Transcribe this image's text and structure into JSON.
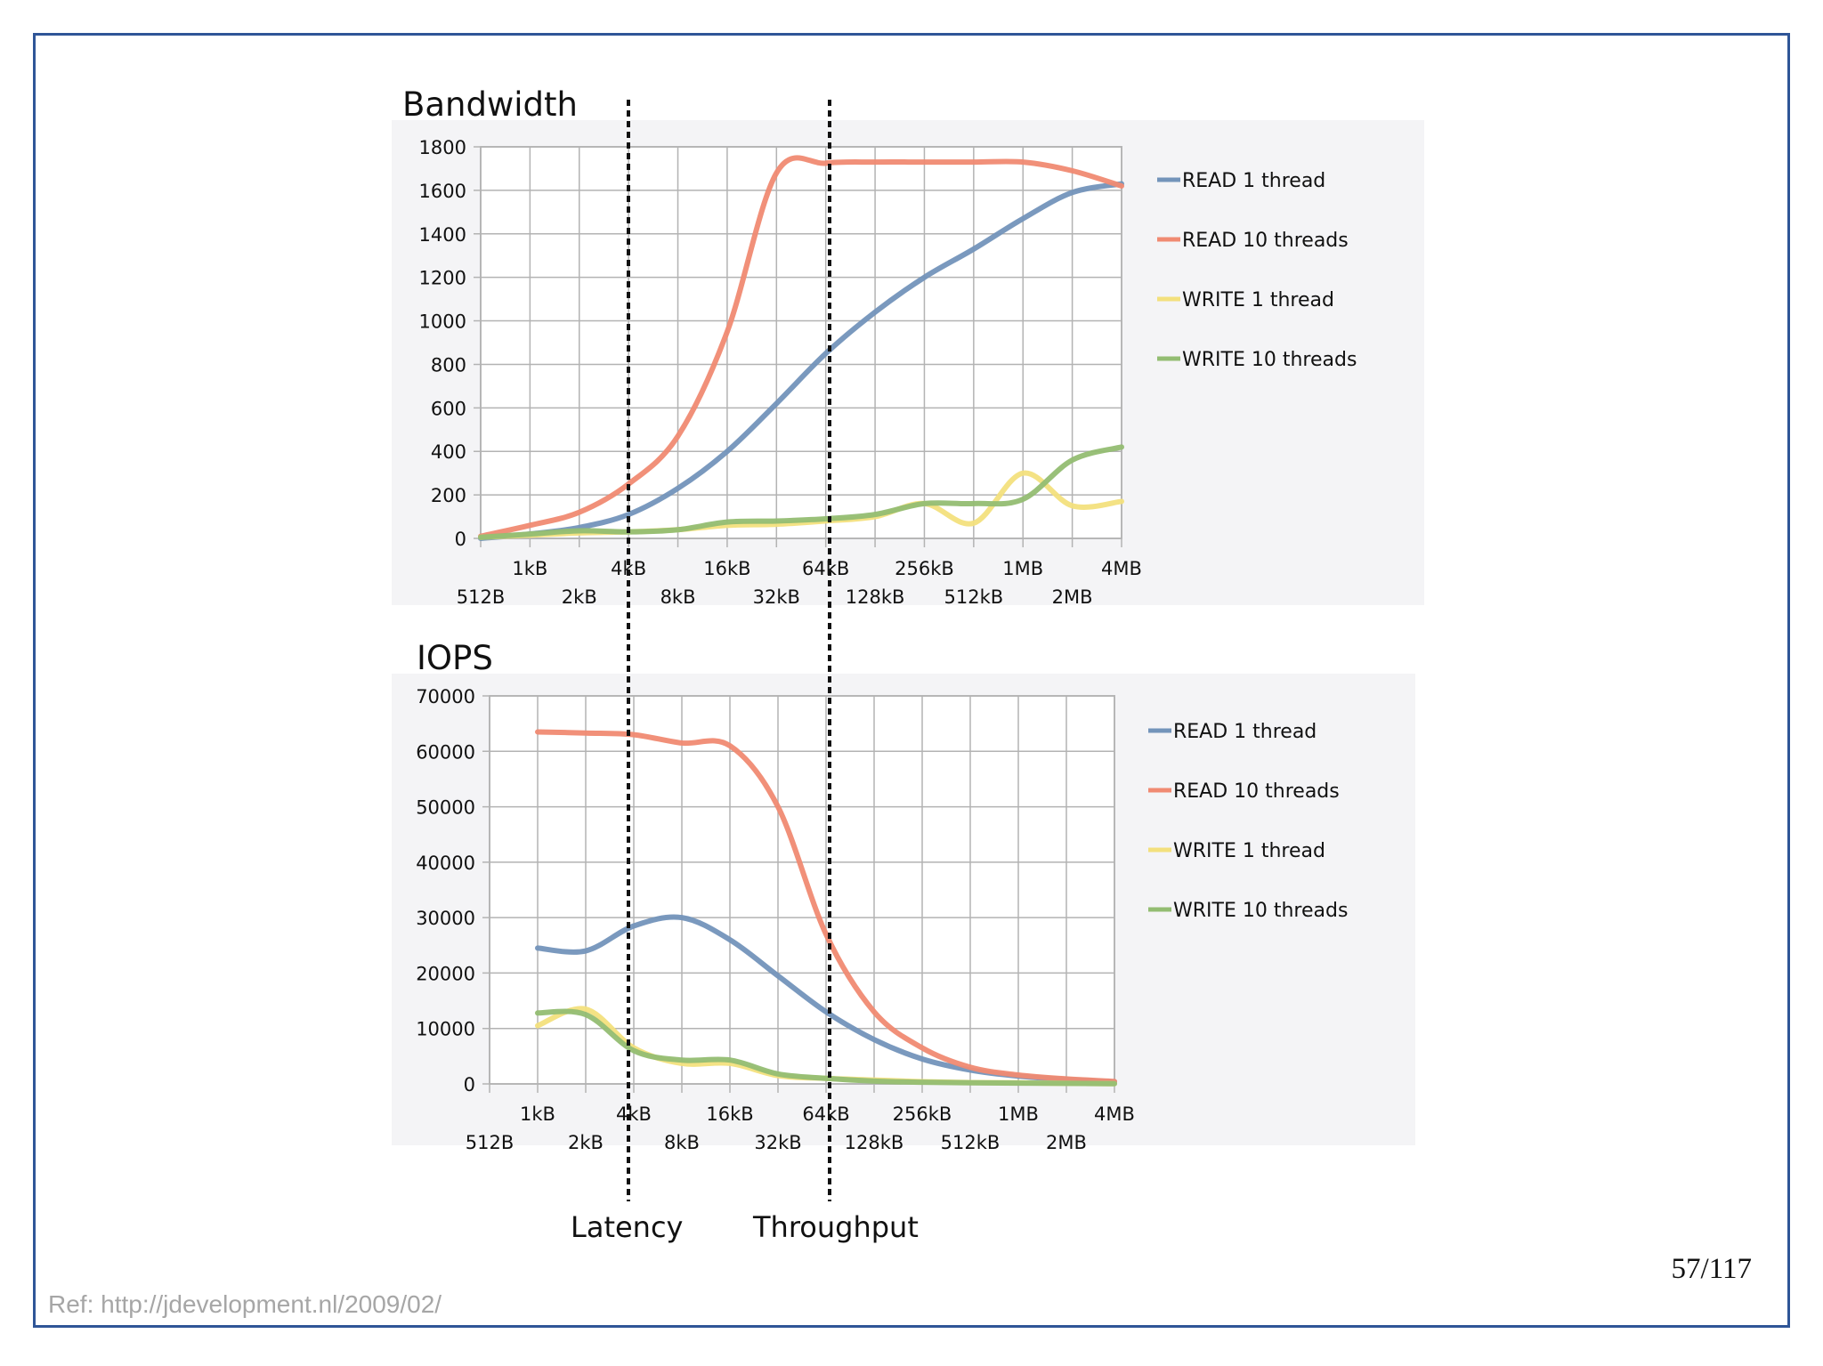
{
  "colors": {
    "frame": "#2f5597",
    "read_1": "#7394ba",
    "read_10": "#f08a72",
    "write_1": "#f3e07d",
    "write_10": "#93bd72",
    "grid": "#b3b3b3",
    "panel": "#f4f4f6",
    "ref_text": "#a6a6a6"
  },
  "markers": {
    "latency_label": "Latency",
    "throughput_label": "Throughput",
    "latency_at": "4kB",
    "throughput_at": "64kB"
  },
  "footer": {
    "page_number": "57/117",
    "ref": "Ref: http://jdevelopment.nl/2009/02/"
  },
  "chart_data": [
    {
      "type": "line",
      "title": "Bandwidth",
      "x_scale": "log2",
      "x_ticks_row1": [
        "1kB",
        "4kB",
        "16kB",
        "64kB",
        "256kB",
        "1MB",
        "4MB"
      ],
      "x_ticks_row2": [
        "512B",
        "2kB",
        "8kB",
        "32kB",
        "128kB",
        "512kB",
        "2MB"
      ],
      "x": [
        "512B",
        "1kB",
        "2kB",
        "4kB",
        "8kB",
        "16kB",
        "32kB",
        "64kB",
        "128kB",
        "256kB",
        "512kB",
        "1MB",
        "2MB",
        "4MB"
      ],
      "ylim": [
        0,
        1800
      ],
      "y_ticks": [
        "0",
        "200",
        "400",
        "600",
        "800",
        "1000",
        "1200",
        "1400",
        "1600",
        "1800"
      ],
      "grid": true,
      "legend_position": "right",
      "series": [
        {
          "name": "READ 1 thread",
          "color_key": "read_1",
          "values": [
            0,
            20,
            50,
            110,
            230,
            400,
            620,
            850,
            1040,
            1200,
            1330,
            1470,
            1590,
            1630
          ]
        },
        {
          "name": "READ 10 threads",
          "color_key": "read_10",
          "values": [
            10,
            60,
            120,
            250,
            470,
            950,
            1680,
            1725,
            1730,
            1730,
            1730,
            1730,
            1690,
            1620
          ]
        },
        {
          "name": "WRITE 1 thread",
          "color_key": "write_1",
          "values": [
            5,
            15,
            25,
            30,
            40,
            60,
            65,
            80,
            100,
            160,
            70,
            300,
            150,
            170
          ]
        },
        {
          "name": "WRITE 10 threads",
          "color_key": "write_10",
          "values": [
            5,
            20,
            35,
            30,
            40,
            75,
            80,
            90,
            110,
            160,
            160,
            180,
            360,
            420
          ]
        }
      ]
    },
    {
      "type": "line",
      "title": "IOPS",
      "x_scale": "log2",
      "x_ticks_row1": [
        "1kB",
        "4kB",
        "16kB",
        "64kB",
        "256kB",
        "1MB",
        "4MB"
      ],
      "x_ticks_row2": [
        "512B",
        "2kB",
        "8kB",
        "32kB",
        "128kB",
        "512kB",
        "2MB"
      ],
      "x": [
        "1kB",
        "2kB",
        "4kB",
        "8kB",
        "16kB",
        "32kB",
        "64kB",
        "128kB",
        "256kB",
        "512kB",
        "1MB",
        "2MB",
        "4MB"
      ],
      "ylim": [
        0,
        70000
      ],
      "y_ticks": [
        "0",
        "10000",
        "20000",
        "30000",
        "40000",
        "50000",
        "60000",
        "70000"
      ],
      "grid": true,
      "legend_position": "right",
      "series": [
        {
          "name": "READ 1 thread",
          "color_key": "read_1",
          "values": [
            24500,
            24000,
            28500,
            30000,
            26000,
            19500,
            13000,
            8000,
            4500,
            2500,
            1400,
            800,
            400
          ]
        },
        {
          "name": "READ 10 threads",
          "color_key": "read_10",
          "values": [
            63500,
            63300,
            63000,
            61500,
            61000,
            50000,
            27000,
            13000,
            6500,
            3000,
            1600,
            900,
            450
          ]
        },
        {
          "name": "WRITE 1 thread",
          "color_key": "write_1",
          "values": [
            10500,
            13500,
            6500,
            3700,
            3700,
            1500,
            1000,
            700,
            400,
            250,
            200,
            100,
            50
          ]
        },
        {
          "name": "WRITE 10 threads",
          "color_key": "write_10",
          "values": [
            12800,
            12500,
            6000,
            4300,
            4300,
            1800,
            1000,
            500,
            300,
            200,
            150,
            100,
            50
          ]
        }
      ]
    }
  ]
}
